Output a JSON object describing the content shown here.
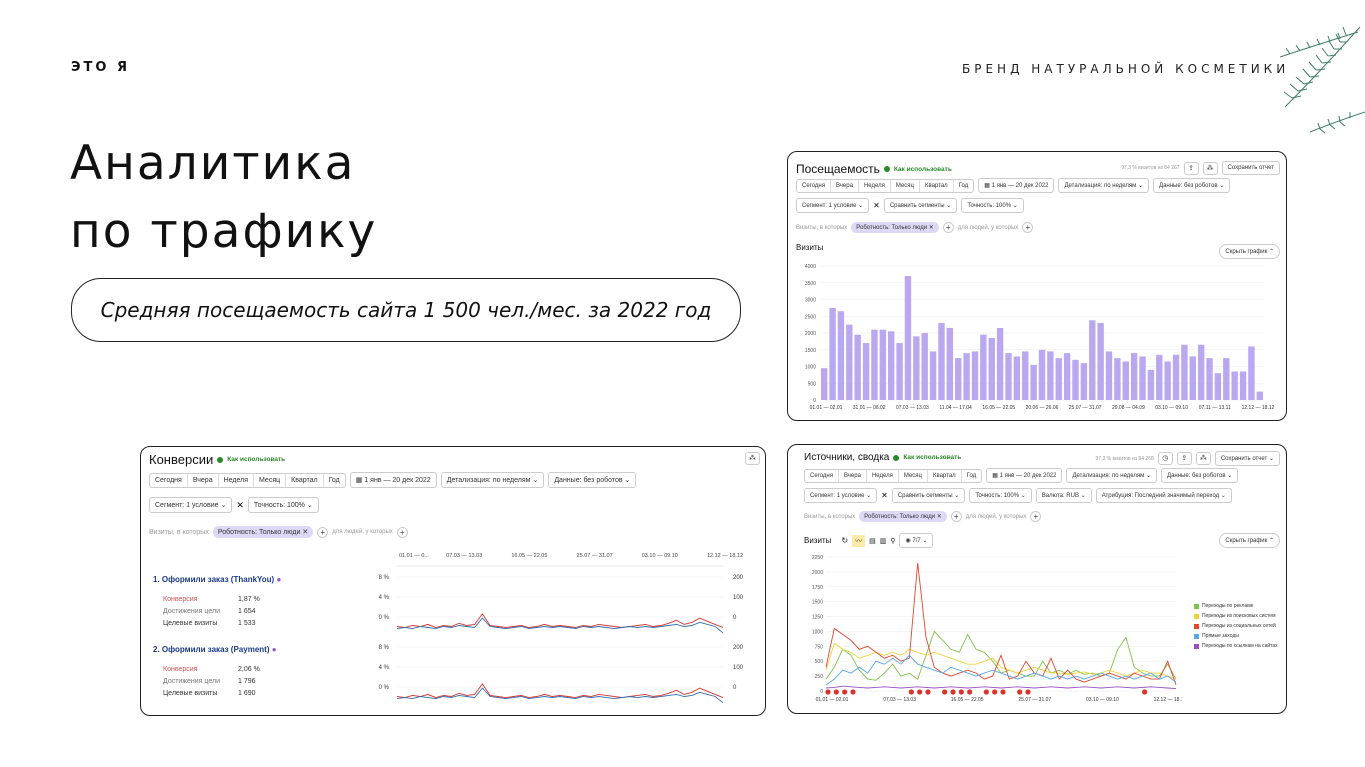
{
  "slide": {
    "eyebrow": "ЭТО Я",
    "brand": "БРЕНД НАТУРАЛЬНОЙ КОСМЕТИКИ",
    "title_line1": "Аналитика",
    "title_line2": "по трафику",
    "subtitle": "Средняя посещаемость сайта 1 500 чел./мес. за 2022 год"
  },
  "colors": {
    "bar": "#b9a8f0",
    "accent_green": "#2a8a2a",
    "line_red": "#d9342b",
    "line_blue": "#2f6fb2"
  },
  "period": [
    "Сегодня",
    "Вчера",
    "Неделя",
    "Месяц",
    "Квартал",
    "Год"
  ],
  "visits_card": {
    "title": "Посещаемость",
    "howto": "Как использовать",
    "sample": "97,3 % визитов из 84 267",
    "save": "Сохранить отчет",
    "date": "1 янв — 20 дек 2022",
    "detail": "Детализация: по неделям",
    "data": "Данные: без роботов",
    "segment": "Сегмент: 1 условие",
    "compare": "Сравнить сегменты",
    "accuracy": "Точность: 100%",
    "filter_prefix": "Визиты, в которых",
    "filter_chip": "Роботность: Только люди",
    "filter_suffix": "для людей, у которых",
    "chart_label": "Визиты",
    "hide_chart": "Скрыть график"
  },
  "conv_card": {
    "title": "Конверсии",
    "howto": "Как использовать",
    "date": "1 янв — 20 дек 2022",
    "detail": "Детализация: по неделям",
    "data": "Данные: без роботов",
    "segment": "Сегмент: 1 условие",
    "accuracy": "Точность: 100%",
    "filter_prefix": "Визиты, в которых",
    "filter_chip": "Роботность: Только люди",
    "filter_suffix": "для людей, у которых",
    "top_ticks": [
      "01.01 — 0...",
      "07.03 — 13.03",
      "16.05 — 22.05",
      "25.07 — 31.07",
      "03.10 — 09.10",
      "12.12 — 18.12"
    ],
    "goals": [
      {
        "name": "1. Оформили заказ (ThankYou)",
        "labels": [
          "Конверсия",
          "Достижения цели",
          "Целевые визиты"
        ],
        "values": [
          "1,87 %",
          "1 654",
          "1 533"
        ]
      },
      {
        "name": "2. Оформили заказ (Payment)",
        "labels": [
          "Конверсия",
          "Достижения цели",
          "Целевые визиты"
        ],
        "values": [
          "2,06 %",
          "1 796",
          "1 690"
        ]
      }
    ],
    "left_ticks": [
      "8 %",
      "4 %",
      "0 %"
    ],
    "right_ticks": [
      "200",
      "100",
      "0"
    ]
  },
  "sources_card": {
    "title": "Источники, сводка",
    "howto": "Как использовать",
    "sample": "97,3 % визитов из 84 268",
    "save": "Сохранить отчет",
    "date": "1 янв — 20 дек 2022",
    "detail": "Детализация: по неделям",
    "data": "Данные: без роботов",
    "segment": "Сегмент: 1 условие",
    "compare": "Сравнить сегменты",
    "accuracy": "Точность: 100%",
    "currency": "Валюта: RUB",
    "attribution": "Атрибуция: Последний значимый переход",
    "filter_prefix": "Визиты, в которых",
    "filter_chip": "Роботность: Только люди",
    "filter_suffix": "для людей, у которых",
    "chart_label": "Визиты",
    "count_badge": "7/7",
    "hide_chart": "Скрыть график",
    "legend": [
      {
        "name": "Переходы по рекламе",
        "color": "#7fc24a"
      },
      {
        "name": "Переходы из поисковых систем",
        "color": "#f0d43a"
      },
      {
        "name": "Переходы из социальных сетей",
        "color": "#e0472f"
      },
      {
        "name": "Прямые заходы",
        "color": "#5aa7e6"
      },
      {
        "name": "Переходы по ссылкам на сайтах",
        "color": "#9a4fc4"
      }
    ]
  },
  "chart_data": [
    {
      "type": "bar",
      "title": "Визиты",
      "ylim": [
        0,
        4000
      ],
      "yticks": [
        "4000",
        "3500",
        "3000",
        "2500",
        "2000",
        "1500",
        "1000",
        "500",
        "0"
      ],
      "xticks": [
        "01.01 — 02.01",
        "31.01 — 06.02",
        "07.03 — 13.03",
        "11.04 — 17.04",
        "16.05 — 22.05",
        "20.06 — 26.06",
        "25.07 — 31.07",
        "29.08 — 04.09",
        "03.10 — 09.10",
        "07.11 — 13.11",
        "12.12 — 18.12"
      ],
      "values": [
        950,
        2750,
        2650,
        2250,
        1950,
        1700,
        2100,
        2100,
        2050,
        1700,
        3700,
        1900,
        2000,
        1450,
        2300,
        2150,
        1250,
        1400,
        1450,
        1950,
        1850,
        2150,
        1400,
        1300,
        1450,
        1050,
        1500,
        1450,
        1250,
        1400,
        1200,
        1100,
        2380,
        2300,
        1450,
        1250,
        1150,
        1400,
        1300,
        900,
        1350,
        1150,
        1350,
        1650,
        1300,
        1650,
        1250,
        800,
        1250,
        850,
        850,
        1600,
        250
      ]
    },
    {
      "type": "line",
      "title": "Визиты",
      "ylim": [
        0,
        2250
      ],
      "yticks": [
        "2250",
        "2000",
        "1750",
        "1500",
        "1250",
        "1000",
        "750",
        "500",
        "250",
        "0"
      ],
      "xticks": [
        "01.01 — 02.01",
        "07.03 — 13.03",
        "16.05 — 22.05",
        "25.07 — 31.07",
        "03.10 — 09.10",
        "12.12 — 18.12"
      ],
      "series": [
        {
          "name": "Переходы по рекламе",
          "values": [
            200,
            400,
            700,
            600,
            350,
            200,
            180,
            300,
            450,
            250,
            300,
            200,
            600,
            1000,
            850,
            700,
            650,
            950,
            700,
            650,
            500,
            300,
            350,
            300,
            250,
            250,
            500,
            300,
            350,
            280,
            350,
            280,
            300,
            250,
            300,
            700,
            900,
            400,
            300,
            250,
            250,
            450,
            200
          ]
        },
        {
          "name": "Переходы из поисковых систем",
          "values": [
            350,
            800,
            700,
            650,
            550,
            600,
            650,
            600,
            650,
            600,
            700,
            650,
            600,
            650,
            600,
            550,
            500,
            450,
            450,
            500,
            550,
            400,
            350,
            300,
            350,
            400,
            350,
            300,
            300,
            280,
            300,
            320,
            280,
            300,
            350,
            300,
            250,
            300,
            350,
            300,
            300,
            250,
            200
          ]
        },
        {
          "name": "Переходы из социальных сетей",
          "values": [
            400,
            1050,
            950,
            850,
            700,
            750,
            650,
            550,
            600,
            500,
            550,
            2150,
            900,
            400,
            300,
            250,
            300,
            350,
            300,
            200,
            250,
            600,
            200,
            250,
            500,
            300,
            250,
            550,
            200,
            350,
            200,
            150,
            200,
            250,
            300,
            250,
            200,
            300,
            250,
            200,
            200,
            500,
            100
          ]
        },
        {
          "name": "Прямые заходы",
          "values": [
            100,
            200,
            350,
            300,
            400,
            300,
            500,
            450,
            550,
            450,
            600,
            450,
            400,
            350,
            300,
            400,
            350,
            300,
            250,
            300,
            350,
            300,
            250,
            200,
            250,
            300,
            250,
            200,
            250,
            200,
            250,
            200,
            250,
            300,
            250,
            200,
            250,
            200,
            250,
            300,
            200,
            250,
            150
          ]
        },
        {
          "name": "Переходы по ссылкам на сайтах",
          "values": [
            50,
            60,
            80,
            70,
            60,
            50,
            60,
            70,
            60,
            50,
            60,
            70,
            60,
            50,
            60,
            70,
            60,
            50,
            60,
            70,
            60,
            50,
            60,
            70,
            60,
            50,
            60,
            70,
            60,
            50,
            60,
            70,
            60,
            50,
            60,
            70,
            60,
            50,
            60,
            70,
            60,
            50,
            40
          ]
        }
      ]
    }
  ]
}
